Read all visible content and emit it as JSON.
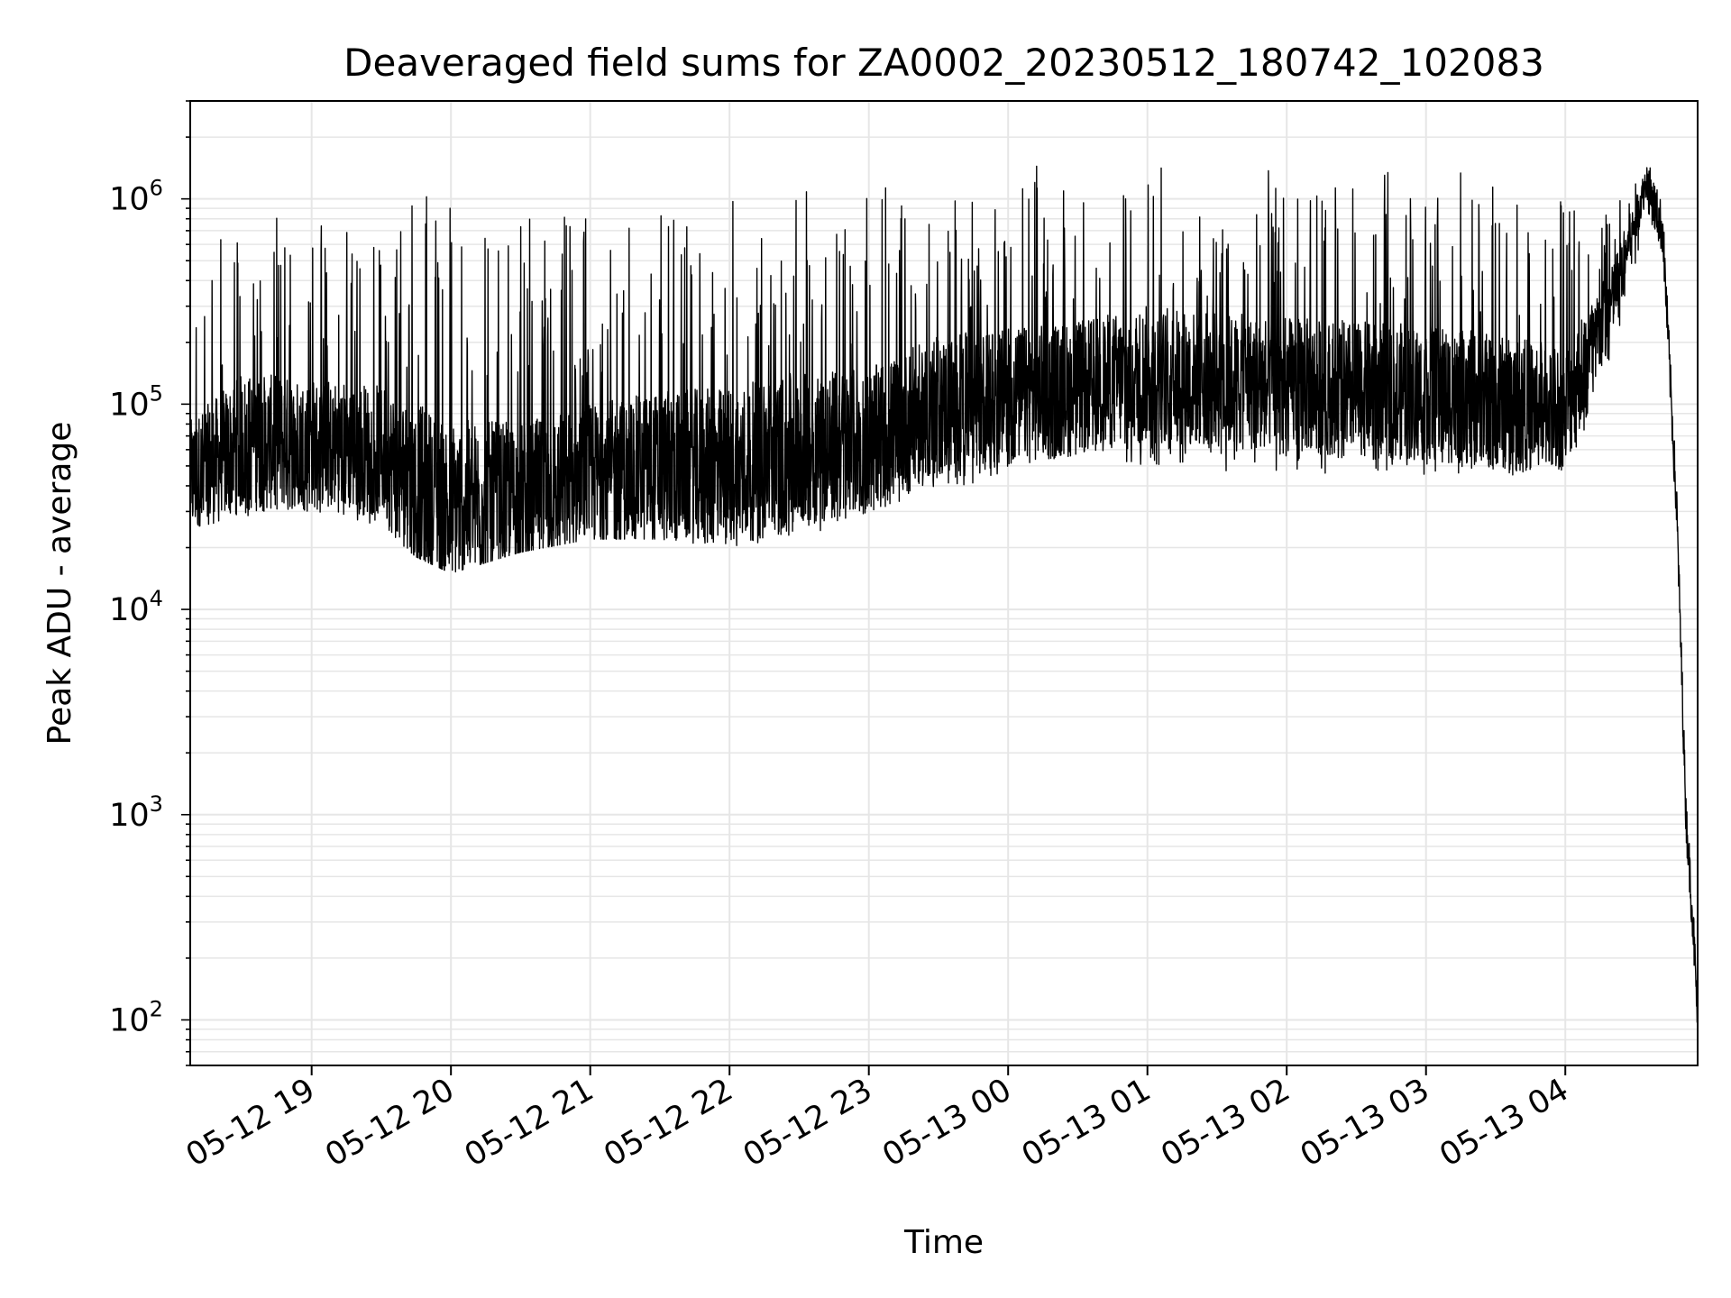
{
  "chart_data": {
    "type": "line",
    "title": "Deaveraged field sums for ZA0002_20230512_180742_102083",
    "xlabel": "Time",
    "ylabel": "Peak ADU - average",
    "yscale": "log",
    "ylim": [
      60,
      3000000
    ],
    "xlim": [
      "2023-05-12 18:07:42",
      "2023-05-13 04:57:00"
    ],
    "grid": true,
    "line_color": "#000000",
    "grid_color": "#e6e6e6",
    "x_ticks": [
      {
        "value": "2023-05-12 19:00",
        "label": "05-12 19"
      },
      {
        "value": "2023-05-12 20:00",
        "label": "05-12 20"
      },
      {
        "value": "2023-05-12 21:00",
        "label": "05-12 21"
      },
      {
        "value": "2023-05-12 22:00",
        "label": "05-12 22"
      },
      {
        "value": "2023-05-12 23:00",
        "label": "05-12 23"
      },
      {
        "value": "2023-05-13 00:00",
        "label": "05-13 00"
      },
      {
        "value": "2023-05-13 01:00",
        "label": "05-13 01"
      },
      {
        "value": "2023-05-13 02:00",
        "label": "05-13 02"
      },
      {
        "value": "2023-05-13 03:00",
        "label": "05-13 03"
      },
      {
        "value": "2023-05-13 04:00",
        "label": "05-13 04"
      }
    ],
    "y_ticks": [
      {
        "value": 100,
        "base": "10",
        "exp": "2"
      },
      {
        "value": 1000,
        "base": "10",
        "exp": "3"
      },
      {
        "value": 10000,
        "base": "10",
        "exp": "4"
      },
      {
        "value": 100000,
        "base": "10",
        "exp": "5"
      },
      {
        "value": 1000000,
        "base": "10",
        "exp": "6"
      }
    ],
    "series": [
      {
        "x": [
          "2023-05-12 18:08",
          "2023-05-12 18:30",
          "2023-05-12 19:00",
          "2023-05-12 19:30",
          "2023-05-12 19:45",
          "2023-05-12 20:00",
          "2023-05-12 20:30",
          "2023-05-12 21:00",
          "2023-05-12 21:30",
          "2023-05-12 22:00",
          "2023-05-12 22:30",
          "2023-05-12 23:00",
          "2023-05-12 23:30",
          "2023-05-13 00:00",
          "2023-05-13 00:30",
          "2023-05-13 01:00",
          "2023-05-13 01:30",
          "2023-05-13 02:00",
          "2023-05-13 02:30",
          "2023-05-13 03:00",
          "2023-05-13 03:30",
          "2023-05-13 04:00",
          "2023-05-13 04:20",
          "2023-05-13 04:35",
          "2023-05-13 04:42",
          "2023-05-13 04:48",
          "2023-05-13 04:52",
          "2023-05-13 04:55",
          "2023-05-13 04:57"
        ],
        "y": [
          40000,
          60000,
          60000,
          55000,
          35000,
          30000,
          32000,
          40000,
          45000,
          45000,
          55000,
          60000,
          90000,
          100000,
          110000,
          130000,
          120000,
          115000,
          110000,
          105000,
          95000,
          90000,
          300000,
          1200000,
          700000,
          30000,
          1000,
          300,
          100
        ],
        "low": [
          25000,
          28000,
          30000,
          25000,
          18000,
          15000,
          19000,
          22000,
          22000,
          20000,
          22000,
          30000,
          38000,
          45000,
          55000,
          48000,
          47000,
          47000,
          45000,
          45000,
          45000,
          44000,
          150000,
          800000,
          400000,
          20000,
          500,
          170,
          90
        ],
        "high": [
          500000,
          900000,
          800000,
          700000,
          1300000,
          1000000,
          800000,
          900000,
          1000000,
          1100000,
          1100000,
          1200000,
          1300000,
          1400000,
          1600000,
          1500000,
          1400000,
          1400000,
          1300000,
          1400000,
          1300000,
          1100000,
          900000,
          1900000,
          900000,
          40000,
          1200,
          400,
          120
        ]
      }
    ]
  }
}
